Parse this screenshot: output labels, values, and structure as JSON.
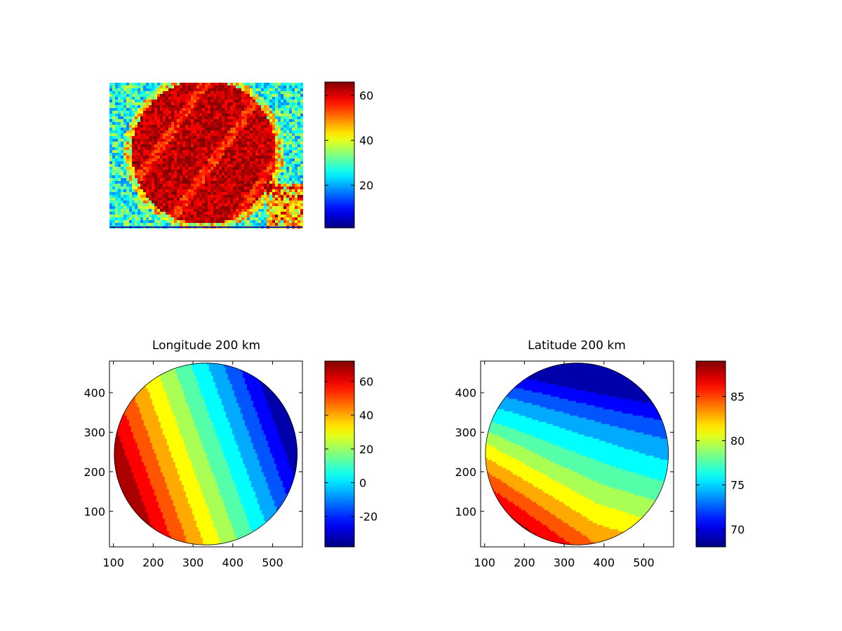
{
  "colors": {
    "colormap": "jet",
    "background": "#ffffff",
    "axes_frame": "#000000"
  },
  "chart_data": [
    {
      "type": "heatmap",
      "title": "",
      "xlabel": "",
      "ylabel": "",
      "axis": "off",
      "description_values": {
        "disk_level": 62,
        "background_level": 28,
        "disk_center_fraction": [
          0.49,
          0.48
        ],
        "disk_radius_fraction": 0.46
      },
      "colorbar": {
        "ticks": [
          20,
          40,
          60
        ],
        "range": [
          1,
          66
        ]
      }
    },
    {
      "type": "heatmap",
      "title": "Longitude 200 km",
      "xlabel": "",
      "ylabel": "",
      "xlim": [
        90,
        575
      ],
      "ylim": [
        10,
        480
      ],
      "x_ticks": [
        100,
        200,
        300,
        400,
        500
      ],
      "y_ticks": [
        100,
        200,
        300,
        400
      ],
      "disk": {
        "center": [
          332,
          245
        ],
        "radius": 230
      },
      "field": {
        "value_range": [
          -38,
          72
        ],
        "gradient_direction_deg": -20,
        "contour_levels": 12
      },
      "colorbar": {
        "ticks": [
          -20,
          0,
          20,
          40,
          60
        ],
        "range": [
          -38,
          72
        ]
      }
    },
    {
      "type": "heatmap",
      "title": "Latitude 200 km",
      "xlabel": "",
      "ylabel": "",
      "xlim": [
        90,
        575
      ],
      "ylim": [
        10,
        480
      ],
      "x_ticks": [
        100,
        200,
        300,
        400,
        500
      ],
      "y_ticks": [
        100,
        200,
        300,
        400
      ],
      "disk": {
        "center": [
          332,
          245
        ],
        "radius": 230
      },
      "field": {
        "value_range": [
          68,
          89
        ],
        "contour_levels": 12
      },
      "colorbar": {
        "ticks": [
          70,
          75,
          80,
          85
        ],
        "range": [
          68,
          89
        ]
      }
    }
  ]
}
